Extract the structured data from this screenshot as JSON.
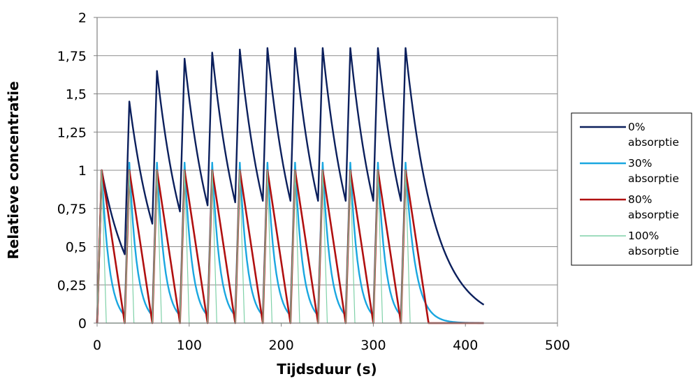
{
  "chart_data": {
    "type": "line",
    "title": "",
    "xlabel": "Tijdsduur (s)",
    "ylabel": "Relatieve concentratie",
    "xlim": [
      0,
      500
    ],
    "ylim": [
      0,
      2
    ],
    "x_ticks": [
      "0",
      "100",
      "200",
      "300",
      "400",
      "500"
    ],
    "y_ticks": [
      "0",
      "0,25",
      "0,5",
      "0,75",
      "1",
      "1,25",
      "1,5",
      "1,75",
      "2"
    ],
    "grid": "horizontal",
    "legend_position": "right",
    "dose_interval_s": 30,
    "dose_count": 12,
    "series": [
      {
        "name": "0% absorptie",
        "color": "#0b1f5c",
        "width": 2.4,
        "x": [
          0,
          5,
          30,
          35,
          60,
          65,
          90,
          95,
          120,
          125,
          150,
          155,
          180,
          185,
          210,
          215,
          240,
          245,
          270,
          275,
          300,
          305,
          330,
          335,
          420
        ],
        "y": [
          0,
          1,
          0.45,
          1.45,
          0.65,
          1.65,
          0.73,
          1.73,
          0.77,
          1.77,
          0.79,
          1.79,
          0.8,
          1.8,
          0.8,
          1.8,
          0.8,
          1.8,
          0.8,
          1.8,
          0.8,
          1.8,
          0.8,
          1.8,
          0.12
        ]
      },
      {
        "name": "30% absorptie",
        "color": "#1aa7e0",
        "width": 2.4,
        "x": [
          0,
          5,
          30,
          35,
          60,
          65,
          90,
          95,
          120,
          125,
          150,
          155,
          180,
          185,
          210,
          215,
          240,
          245,
          270,
          275,
          300,
          305,
          330,
          335,
          400,
          420
        ],
        "y": [
          0,
          1,
          0.05,
          1.05,
          0.05,
          1.05,
          0.05,
          1.05,
          0.05,
          1.05,
          0.05,
          1.05,
          0.05,
          1.05,
          0.05,
          1.05,
          0.05,
          1.05,
          0.05,
          1.05,
          0.05,
          1.05,
          0.05,
          1.05,
          0.002,
          0
        ]
      },
      {
        "name": "80% absorptie",
        "color": "#b01010",
        "width": 2.6,
        "x": [
          0,
          5,
          30,
          35,
          60,
          65,
          90,
          95,
          120,
          125,
          150,
          155,
          180,
          185,
          210,
          215,
          240,
          245,
          270,
          275,
          300,
          305,
          330,
          335,
          360,
          420
        ],
        "y": [
          0,
          1,
          0,
          1,
          0,
          1,
          0,
          1,
          0,
          1,
          0,
          1,
          0,
          1,
          0,
          1,
          0,
          1,
          0,
          1,
          0,
          1,
          0,
          1,
          0,
          0
        ]
      },
      {
        "name": "100% absorptie",
        "color": "#7fd1a8",
        "width": 1.2,
        "x": [
          0,
          5,
          10,
          30,
          35,
          40,
          60,
          65,
          70,
          90,
          95,
          100,
          120,
          125,
          130,
          150,
          155,
          160,
          180,
          185,
          190,
          210,
          215,
          220,
          240,
          245,
          250,
          270,
          275,
          280,
          300,
          305,
          310,
          330,
          335,
          340,
          420
        ],
        "y": [
          0,
          1,
          0,
          0,
          1,
          0,
          0,
          1,
          0,
          0,
          1,
          0,
          0,
          1,
          0,
          0,
          1,
          0,
          0,
          1,
          0,
          0,
          1,
          0,
          0,
          1,
          0,
          0,
          1,
          0,
          0,
          1,
          0,
          0,
          1,
          0,
          0
        ]
      }
    ]
  }
}
